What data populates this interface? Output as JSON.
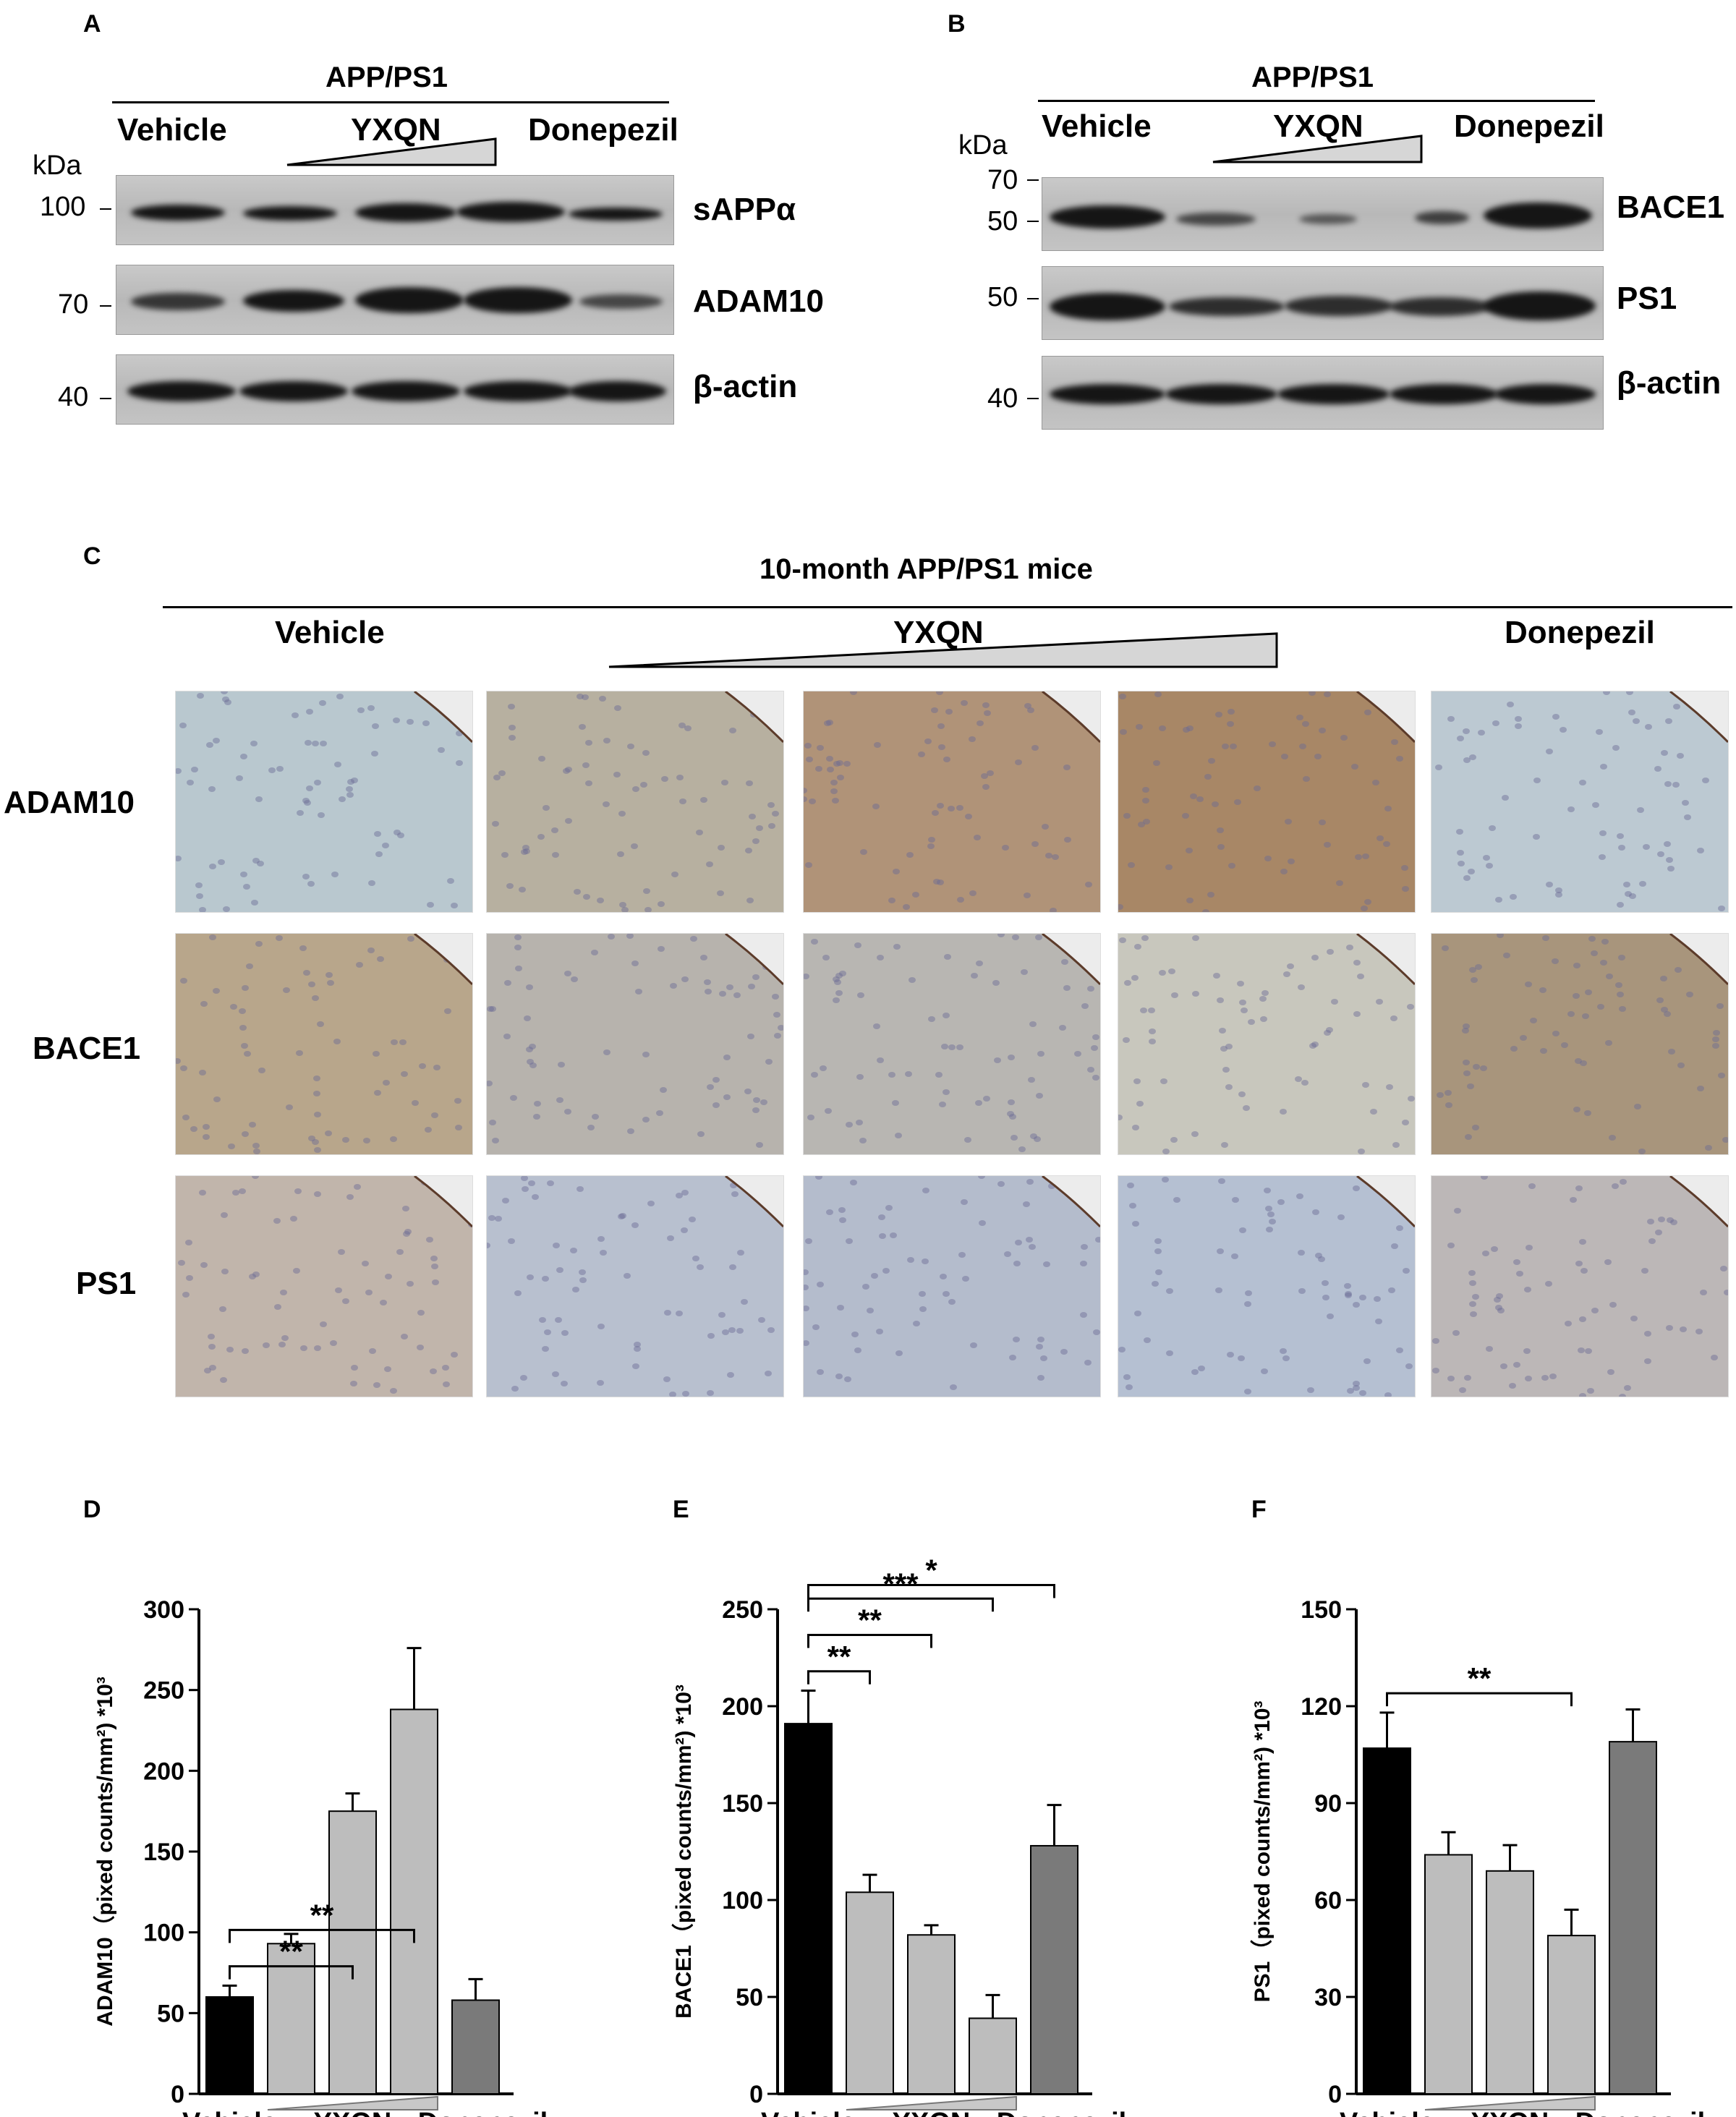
{
  "panels": {
    "A": {
      "letter": "A",
      "group": "APP/PS1",
      "lanes": {
        "vehicle": "Vehicle",
        "yxqn": "YXQN",
        "donepezil": "Donepezil"
      },
      "unit": "kDa",
      "rows": [
        {
          "protein": "sAPPα",
          "mw": "100"
        },
        {
          "protein": "ADAM10",
          "mw": "70"
        },
        {
          "protein": "β-actin",
          "mw": "40"
        }
      ]
    },
    "B": {
      "letter": "B",
      "group": "APP/PS1",
      "lanes": {
        "vehicle": "Vehicle",
        "yxqn": "YXQN",
        "donepezil": "Donepezil"
      },
      "unit": "kDa",
      "rows": [
        {
          "protein": "BACE1",
          "mw_top": "70",
          "mw": "50"
        },
        {
          "protein": "PS1",
          "mw": "50"
        },
        {
          "protein": "β-actin",
          "mw": "40"
        }
      ]
    },
    "C": {
      "letter": "C",
      "title": "10-month APP/PS1 mice",
      "cols": {
        "vehicle": "Vehicle",
        "yxqn": "YXQN",
        "donepezil": "Donepezil"
      },
      "rows": [
        "ADAM10",
        "BACE1",
        "PS1"
      ],
      "row_colors": {
        "ADAM10": [
          "#b9c8cf",
          "#b7b0a0",
          "#b09378",
          "#a88766",
          "#bcc9d2"
        ],
        "BACE1": [
          "#b8a68b",
          "#b7b3ad",
          "#b8b6b2",
          "#c8c7bd",
          "#a8957c"
        ],
        "PS1": [
          "#c1b5ab",
          "#b8c0cf",
          "#b4bccc",
          "#b5c0d2",
          "#bcb7b7"
        ]
      }
    }
  },
  "chart_data": [
    {
      "panel": "D",
      "type": "bar",
      "categories": [
        "Vehicle",
        "YXQN",
        "YXQN",
        "YXQN",
        "Donepezil"
      ],
      "category_labels": [
        "Vehicle",
        "YXQN",
        "Donepezil"
      ],
      "values": [
        60,
        93,
        175,
        238,
        58
      ],
      "errors": [
        7,
        6,
        11,
        38,
        13
      ],
      "colors": [
        "#000000",
        "#bdbdbd",
        "#bdbdbd",
        "#bdbdbd",
        "#7a7a7a"
      ],
      "ylabel": "ADAM10（pixed counts/mm²) *10³",
      "ylim": [
        0,
        300
      ],
      "yticks": [
        0,
        50,
        100,
        150,
        200,
        250,
        300
      ],
      "significance": [
        {
          "from": 0,
          "to": 2,
          "label": "**"
        },
        {
          "from": 0,
          "to": 3,
          "label": "**"
        }
      ]
    },
    {
      "panel": "E",
      "type": "bar",
      "categories": [
        "Vehicle",
        "YXQN",
        "YXQN",
        "YXQN",
        "Donepezil"
      ],
      "category_labels": [
        "Vehicle",
        "YXQN",
        "Donepezil"
      ],
      "values": [
        191,
        104,
        82,
        39,
        128
      ],
      "errors": [
        17,
        9,
        5,
        12,
        21
      ],
      "colors": [
        "#000000",
        "#bdbdbd",
        "#bdbdbd",
        "#bdbdbd",
        "#7a7a7a"
      ],
      "ylabel": "BACE1（pixed counts/mm²) *10³",
      "ylim": [
        0,
        250
      ],
      "yticks": [
        0,
        50,
        100,
        150,
        200,
        250
      ],
      "significance": [
        {
          "from": 0,
          "to": 1,
          "label": "**"
        },
        {
          "from": 0,
          "to": 2,
          "label": "**"
        },
        {
          "from": 0,
          "to": 3,
          "label": "***"
        },
        {
          "from": 0,
          "to": 4,
          "label": "*"
        }
      ]
    },
    {
      "panel": "F",
      "type": "bar",
      "categories": [
        "Vehicle",
        "YXQN",
        "YXQN",
        "YXQN",
        "Donepezil"
      ],
      "category_labels": [
        "Vehicle",
        "YXQN",
        "Donepezil"
      ],
      "values": [
        107,
        74,
        69,
        49,
        109
      ],
      "errors": [
        11,
        7,
        8,
        8,
        10
      ],
      "colors": [
        "#000000",
        "#bdbdbd",
        "#bdbdbd",
        "#bdbdbd",
        "#7a7a7a"
      ],
      "ylabel": "PS1（pixed counts/mm²) *10³",
      "ylim": [
        0,
        150
      ],
      "yticks": [
        0,
        30,
        60,
        90,
        120,
        150
      ],
      "significance": [
        {
          "from": 0,
          "to": 3,
          "label": "**"
        }
      ]
    }
  ]
}
